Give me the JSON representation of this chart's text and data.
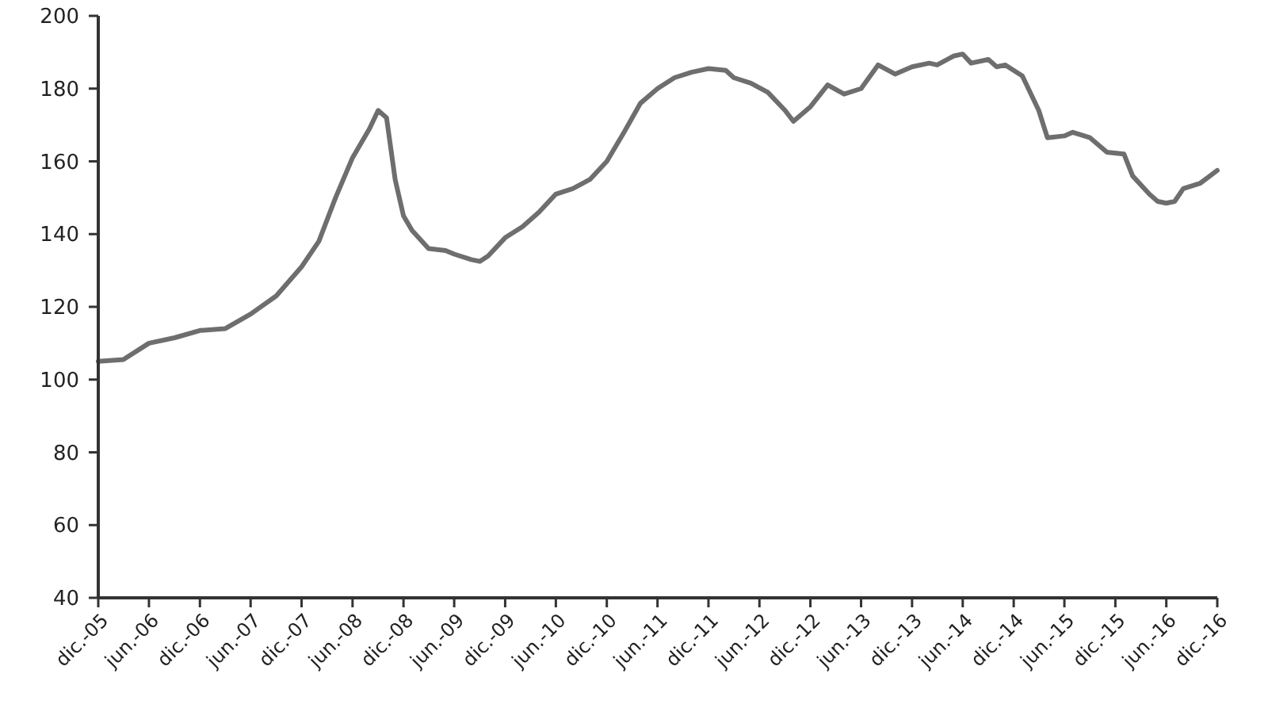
{
  "chart_data": {
    "type": "line",
    "ylim": [
      40,
      200
    ],
    "yticks": [
      40,
      60,
      80,
      100,
      120,
      140,
      160,
      180,
      200
    ],
    "xlim": [
      "2005-12",
      "2016-12"
    ],
    "xticks": [
      {
        "value": "2005-12",
        "label": "dic.-05"
      },
      {
        "value": "2006-06",
        "label": "jun.-06"
      },
      {
        "value": "2006-12",
        "label": "dic.-06"
      },
      {
        "value": "2007-06",
        "label": "jun.-07"
      },
      {
        "value": "2007-12",
        "label": "dic.-07"
      },
      {
        "value": "2008-06",
        "label": "jun.-08"
      },
      {
        "value": "2008-12",
        "label": "dic.-08"
      },
      {
        "value": "2009-06",
        "label": "jun.-09"
      },
      {
        "value": "2009-12",
        "label": "dic.-09"
      },
      {
        "value": "2010-06",
        "label": "jun.-10"
      },
      {
        "value": "2010-12",
        "label": "dic.-10"
      },
      {
        "value": "2011-06",
        "label": "jun.-11"
      },
      {
        "value": "2011-12",
        "label": "dic.-11"
      },
      {
        "value": "2012-06",
        "label": "jun.-12"
      },
      {
        "value": "2012-12",
        "label": "dic.-12"
      },
      {
        "value": "2013-06",
        "label": "jun.-13"
      },
      {
        "value": "2013-12",
        "label": "dic.-13"
      },
      {
        "value": "2014-06",
        "label": "jun.-14"
      },
      {
        "value": "2014-12",
        "label": "dic.-14"
      },
      {
        "value": "2015-06",
        "label": "jun.-15"
      },
      {
        "value": "2015-12",
        "label": "dic.-15"
      },
      {
        "value": "2016-06",
        "label": "jun.-16"
      },
      {
        "value": "2016-12",
        "label": "dic.-16"
      }
    ],
    "grid": false,
    "marker": "none",
    "line_style": "solid",
    "series": [
      {
        "color": "#6e6e6e",
        "x": [
          "2005-12",
          "2006-03",
          "2006-06",
          "2006-09",
          "2006-12",
          "2007-03",
          "2007-06",
          "2007-09",
          "2007-12",
          "2008-02",
          "2008-04",
          "2008-06",
          "2008-08",
          "2008-09",
          "2008-10",
          "2008-11",
          "2008-12",
          "2009-01",
          "2009-03",
          "2009-05",
          "2009-06",
          "2009-08",
          "2009-09",
          "2009-10",
          "2009-12",
          "2010-02",
          "2010-04",
          "2010-06",
          "2010-08",
          "2010-10",
          "2010-12",
          "2011-02",
          "2011-04",
          "2011-06",
          "2011-08",
          "2011-10",
          "2011-12",
          "2012-02",
          "2012-03",
          "2012-05",
          "2012-07",
          "2012-09",
          "2012-10",
          "2012-12",
          "2013-02",
          "2013-04",
          "2013-06",
          "2013-08",
          "2013-10",
          "2013-12",
          "2014-02",
          "2014-03",
          "2014-05",
          "2014-06",
          "2014-07",
          "2014-09",
          "2014-10",
          "2014-11",
          "2015-01",
          "2015-03",
          "2015-04",
          "2015-06",
          "2015-07",
          "2015-09",
          "2015-11",
          "2016-01",
          "2016-02",
          "2016-04",
          "2016-05",
          "2016-06",
          "2016-07",
          "2016-08",
          "2016-10",
          "2016-12"
        ],
        "values": [
          105,
          105.5,
          110,
          111.5,
          113.5,
          114,
          118,
          123,
          131,
          138,
          150,
          161,
          169,
          174,
          172,
          155,
          145,
          141,
          136,
          135.5,
          134.5,
          133,
          132.5,
          134,
          139,
          142,
          146,
          151,
          152.5,
          155,
          160,
          168,
          176,
          180,
          183,
          184.5,
          185.5,
          185,
          183,
          181.5,
          179,
          174,
          171,
          175,
          181,
          178.5,
          180,
          186.5,
          184,
          186,
          187,
          186.5,
          189,
          189.5,
          187,
          188,
          186,
          186.5,
          183.5,
          174,
          166.5,
          167,
          168,
          166.5,
          162.5,
          162,
          156,
          151,
          149,
          148.5,
          149,
          152.5,
          154,
          157.5
        ]
      }
    ]
  }
}
